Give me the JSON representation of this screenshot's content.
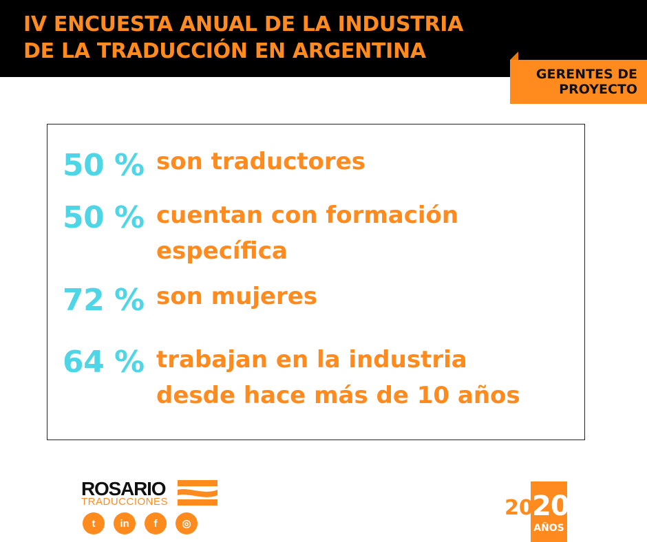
{
  "header": {
    "title_line1": "IV ENCUESTA ANUAL DE LA INDUSTRIA",
    "title_line2": "DE LA TRADUCCIÓN EN ARGENTINA"
  },
  "tag": {
    "line1": "GERENTES DE",
    "line2": "PROYECTO"
  },
  "stats": [
    {
      "percent": "50 %",
      "line1": "son traductores",
      "line2": ""
    },
    {
      "percent": "50 %",
      "line1": "cuentan con formación",
      "line2": "específica"
    },
    {
      "percent": "72 %",
      "line1": "son mujeres",
      "line2": ""
    },
    {
      "percent": "64 %",
      "line1": "trabajan en la industria",
      "line2": "desde hace más de 10 años"
    }
  ],
  "logo": {
    "name": "ROSARIO",
    "subtitle": "TRADUCCIONES"
  },
  "social": [
    {
      "icon": "twitter-icon",
      "glyph": "t"
    },
    {
      "icon": "linkedin-icon",
      "glyph": "in"
    },
    {
      "icon": "facebook-icon",
      "glyph": "f"
    },
    {
      "icon": "instagram-icon",
      "glyph": "◎"
    }
  ],
  "anniversary": {
    "year_part1": "20",
    "year_part2": "20",
    "label": "AÑOS"
  },
  "colors": {
    "accent_orange": "#ff8b1f",
    "accent_cyan": "#4fd6e6",
    "header_bg": "#000000"
  }
}
